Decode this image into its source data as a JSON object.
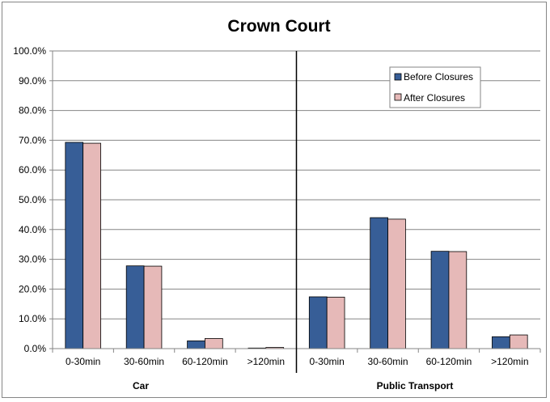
{
  "chart_data": {
    "type": "bar",
    "title": "Crown Court",
    "xlabel": "",
    "ylabel": "",
    "ylim": [
      0,
      100
    ],
    "y_ticks": [
      "0.0%",
      "10.0%",
      "20.0%",
      "30.0%",
      "40.0%",
      "50.0%",
      "60.0%",
      "70.0%",
      "80.0%",
      "90.0%",
      "100.0%"
    ],
    "grid": true,
    "legend_position": "top-right",
    "groups": [
      "Car",
      "Public Transport"
    ],
    "categories": [
      "0-30min",
      "30-60min",
      "60-120min",
      ">120min",
      "0-30min",
      "30-60min",
      "60-120min",
      ">120min"
    ],
    "series": [
      {
        "name": "Before Closures",
        "color": "#375E97",
        "values": [
          69.3,
          27.8,
          2.6,
          0.2,
          17.4,
          44.0,
          32.7,
          4.0
        ]
      },
      {
        "name": "After Closures",
        "color": "#E6B9B8",
        "values": [
          69.0,
          27.7,
          3.4,
          0.4,
          17.3,
          43.5,
          32.6,
          4.6
        ]
      }
    ]
  }
}
